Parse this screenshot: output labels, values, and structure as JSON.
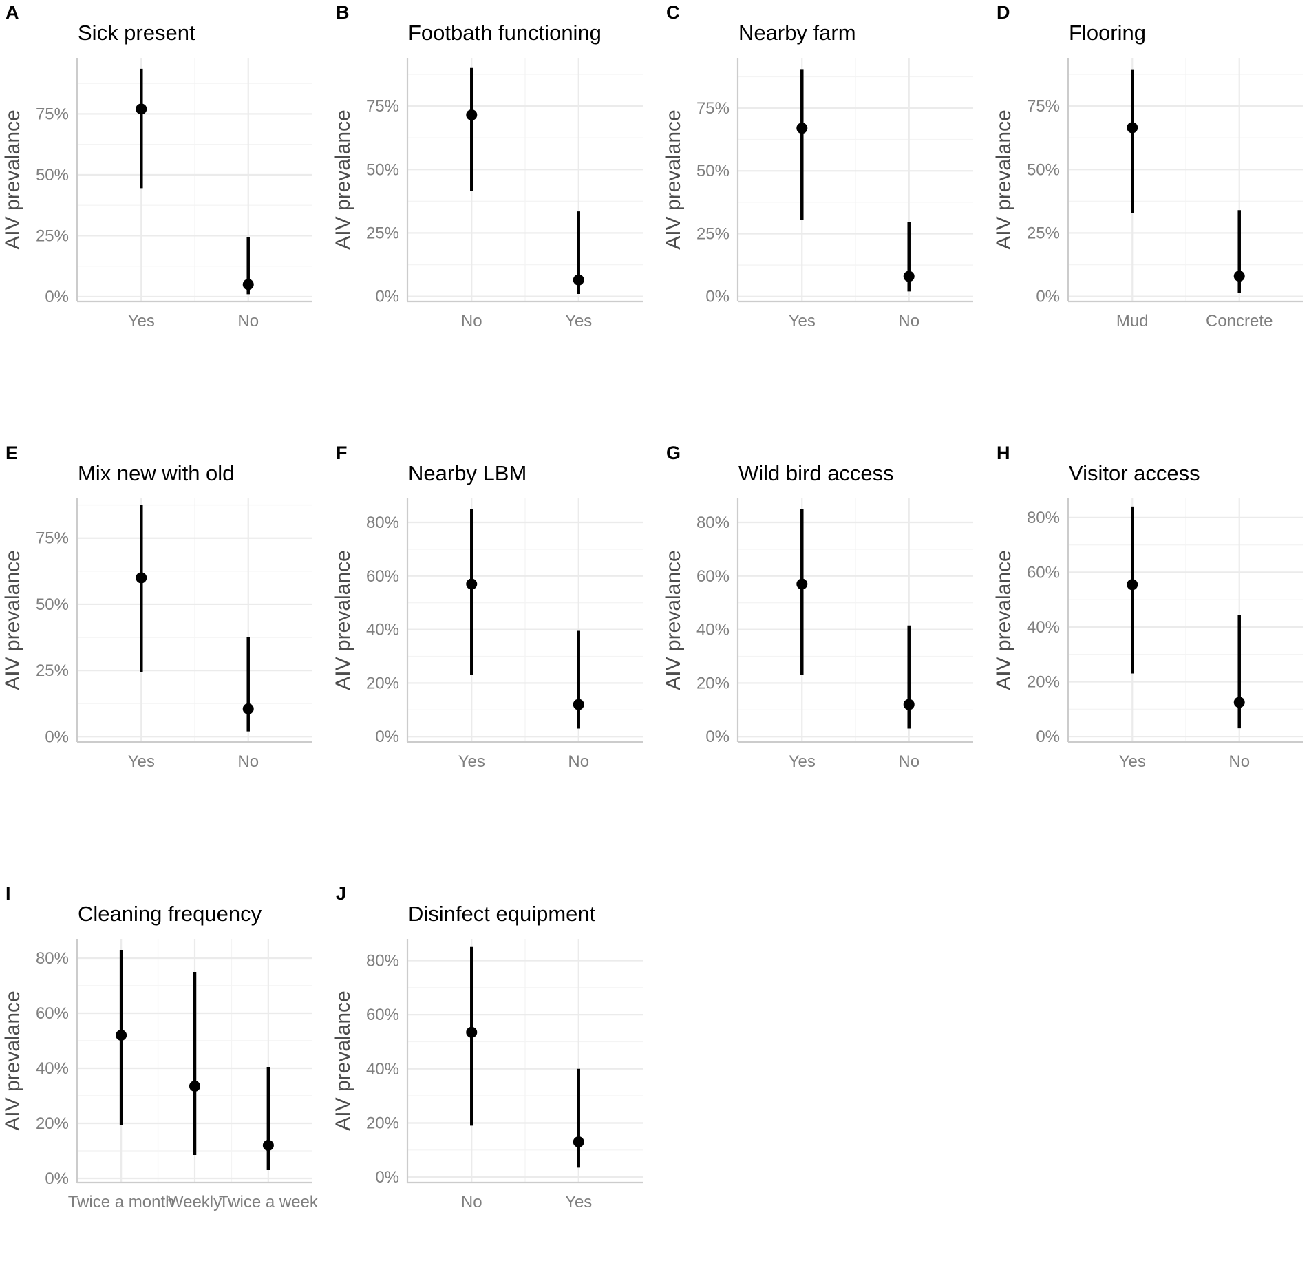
{
  "figure": {
    "ylabel": "AIV prevalance",
    "colors": {
      "mark": "#000000",
      "grid": "#ebebeb",
      "tick_text": "#7f7f7f",
      "axis_title": "#4d4d4d"
    }
  },
  "chart_data": [
    {
      "type": "pointrange",
      "label": "A",
      "title": "Sick present",
      "ylabel": "AIV prevalance",
      "ylim": [
        -2,
        98
      ],
      "yticks": [
        0,
        25,
        50,
        75
      ],
      "ytick_labels": [
        "0%",
        "25%",
        "50%",
        "75%"
      ],
      "categories": [
        "Yes",
        "No"
      ],
      "estimate": [
        77,
        5
      ],
      "lower": [
        44.5,
        1
      ],
      "upper": [
        93.5,
        24.5
      ]
    },
    {
      "type": "pointrange",
      "label": "B",
      "title": "Footbath functioning",
      "ylabel": "AIV prevalance",
      "ylim": [
        -2,
        94
      ],
      "yticks": [
        0,
        25,
        50,
        75
      ],
      "ytick_labels": [
        "0%",
        "25%",
        "50%",
        "75%"
      ],
      "categories": [
        "No",
        "Yes"
      ],
      "estimate": [
        71.5,
        6.5
      ],
      "lower": [
        41.5,
        1
      ],
      "upper": [
        90,
        33.5
      ]
    },
    {
      "type": "pointrange",
      "label": "C",
      "title": "Nearby farm",
      "ylabel": "AIV prevalance",
      "ylim": [
        -2,
        95
      ],
      "yticks": [
        0,
        25,
        50,
        75
      ],
      "ytick_labels": [
        "0%",
        "25%",
        "50%",
        "75%"
      ],
      "categories": [
        "Yes",
        "No"
      ],
      "estimate": [
        67,
        8
      ],
      "lower": [
        30.5,
        2
      ],
      "upper": [
        90.5,
        29.5
      ]
    },
    {
      "type": "pointrange",
      "label": "D",
      "title": "Flooring",
      "ylabel": "AIV prevalance",
      "ylim": [
        -2,
        94
      ],
      "yticks": [
        0,
        25,
        50,
        75
      ],
      "ytick_labels": [
        "0%",
        "25%",
        "50%",
        "75%"
      ],
      "categories": [
        "Mud",
        "Concrete"
      ],
      "estimate": [
        66.5,
        8
      ],
      "lower": [
        33,
        1.5
      ],
      "upper": [
        89.5,
        34
      ]
    },
    {
      "type": "pointrange",
      "label": "E",
      "title": "Mix new with old",
      "ylabel": "AIV prevalance",
      "ylim": [
        -2,
        90
      ],
      "yticks": [
        0,
        25,
        50,
        75
      ],
      "ytick_labels": [
        "0%",
        "25%",
        "50%",
        "75%"
      ],
      "categories": [
        "Yes",
        "No"
      ],
      "estimate": [
        60,
        10.5
      ],
      "lower": [
        24.5,
        2
      ],
      "upper": [
        87.5,
        37.5
      ]
    },
    {
      "type": "pointrange",
      "label": "F",
      "title": "Nearby LBM",
      "ylabel": "AIV prevalance",
      "ylim": [
        -2,
        89
      ],
      "yticks": [
        0,
        20,
        40,
        60,
        80
      ],
      "ytick_labels": [
        "0%",
        "20%",
        "40%",
        "60%",
        "80%"
      ],
      "categories": [
        "Yes",
        "No"
      ],
      "estimate": [
        57,
        12
      ],
      "lower": [
        23,
        3
      ],
      "upper": [
        85,
        39.5
      ]
    },
    {
      "type": "pointrange",
      "label": "G",
      "title": "Wild bird access",
      "ylabel": "AIV prevalance",
      "ylim": [
        -2,
        89
      ],
      "yticks": [
        0,
        20,
        40,
        60,
        80
      ],
      "ytick_labels": [
        "0%",
        "20%",
        "40%",
        "60%",
        "80%"
      ],
      "categories": [
        "Yes",
        "No"
      ],
      "estimate": [
        57,
        12
      ],
      "lower": [
        23,
        3
      ],
      "upper": [
        85,
        41.5
      ]
    },
    {
      "type": "pointrange",
      "label": "H",
      "title": "Visitor access",
      "ylabel": "AIV prevalance",
      "ylim": [
        -2,
        87
      ],
      "yticks": [
        0,
        20,
        40,
        60,
        80
      ],
      "ytick_labels": [
        "0%",
        "20%",
        "40%",
        "60%",
        "80%"
      ],
      "categories": [
        "Yes",
        "No"
      ],
      "estimate": [
        55.5,
        12.5
      ],
      "lower": [
        23,
        3
      ],
      "upper": [
        84,
        44.5
      ]
    },
    {
      "type": "pointrange",
      "label": "I",
      "title": "Cleaning frequency",
      "ylabel": "AIV prevalance",
      "ylim": [
        -1.5,
        87
      ],
      "yticks": [
        0,
        20,
        40,
        60,
        80
      ],
      "ytick_labels": [
        "0%",
        "20%",
        "40%",
        "60%",
        "80%"
      ],
      "categories": [
        "Twice a month",
        "Weekly",
        "Twice a week"
      ],
      "estimate": [
        52,
        33.5,
        12
      ],
      "lower": [
        19.5,
        8.5,
        3
      ],
      "upper": [
        83,
        75,
        40.5
      ]
    },
    {
      "type": "pointrange",
      "label": "J",
      "title": "Disinfect equipment",
      "ylabel": "AIV prevalance",
      "ylim": [
        -2,
        88
      ],
      "yticks": [
        0,
        20,
        40,
        60,
        80
      ],
      "ytick_labels": [
        "0%",
        "20%",
        "40%",
        "60%",
        "80%"
      ],
      "categories": [
        "No",
        "Yes"
      ],
      "estimate": [
        53.5,
        13
      ],
      "lower": [
        19,
        3.5
      ],
      "upper": [
        85,
        40
      ]
    }
  ]
}
